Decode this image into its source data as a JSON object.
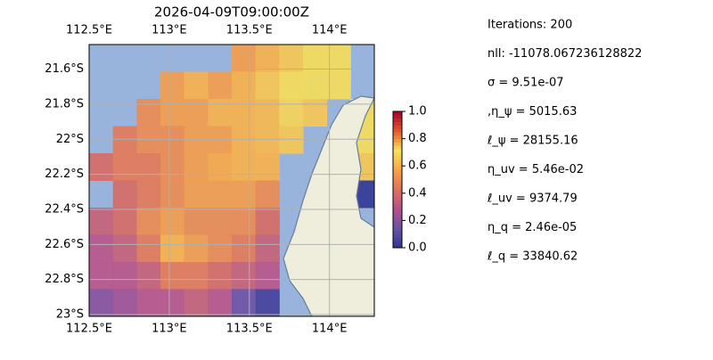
{
  "title": "2026-04-09T09:00:00Z",
  "map": {
    "lon_range": [
      112.5,
      114.28
    ],
    "lat_range": [
      -23.01,
      -21.46
    ],
    "lon_ticks": [
      {
        "value": 112.5,
        "label": "112.5°E"
      },
      {
        "value": 113,
        "label": "113°E"
      },
      {
        "value": 113.5,
        "label": "113.5°E"
      },
      {
        "value": 114,
        "label": "114°E"
      }
    ],
    "lat_ticks": [
      {
        "value": -21.6,
        "label": "21.6°S"
      },
      {
        "value": -21.8,
        "label": "21.8°S"
      },
      {
        "value": -22,
        "label": "22°S"
      },
      {
        "value": -22.2,
        "label": "22.2°S"
      },
      {
        "value": -22.4,
        "label": "22.4°S"
      },
      {
        "value": -22.6,
        "label": "22.6°S"
      },
      {
        "value": -22.8,
        "label": "22.8°S"
      },
      {
        "value": -23,
        "label": "23°S"
      }
    ],
    "field": [
      [
        null,
        null,
        null,
        null,
        null,
        null,
        0.55,
        0.6,
        0.65,
        0.7,
        0.7,
        null
      ],
      [
        null,
        null,
        null,
        0.55,
        0.6,
        0.55,
        0.6,
        0.65,
        0.7,
        0.72,
        0.7,
        null
      ],
      [
        null,
        null,
        0.5,
        0.55,
        0.55,
        0.6,
        0.6,
        0.62,
        0.68,
        0.65,
        null,
        0.7
      ],
      [
        null,
        0.45,
        0.5,
        0.5,
        0.55,
        0.55,
        0.6,
        0.62,
        0.65,
        null,
        null,
        0.7
      ],
      [
        0.4,
        0.45,
        0.45,
        0.5,
        0.55,
        0.58,
        0.6,
        0.6,
        null,
        null,
        null,
        0.65
      ],
      [
        null,
        0.4,
        0.45,
        0.5,
        0.55,
        0.55,
        0.55,
        0.5,
        null,
        null,
        null,
        0.0
      ],
      [
        0.35,
        0.4,
        0.5,
        0.55,
        0.5,
        0.5,
        0.5,
        0.4,
        null,
        null,
        null,
        null
      ],
      [
        0.3,
        0.35,
        0.45,
        0.6,
        0.55,
        0.5,
        0.45,
        0.35,
        null,
        null,
        null,
        null
      ],
      [
        0.3,
        0.3,
        0.35,
        0.45,
        0.45,
        0.4,
        0.35,
        0.3,
        null,
        null,
        null,
        null
      ],
      [
        0.2,
        0.25,
        0.3,
        0.3,
        0.35,
        0.3,
        0.15,
        0.05,
        null,
        null,
        null,
        null
      ]
    ],
    "colormap": [
      "#313695",
      "#6a51a3",
      "#b5508f",
      "#e0715a",
      "#f9a446",
      "#f7e35a",
      "#e8562e",
      "#a50026"
    ],
    "clim": [
      0,
      1
    ],
    "cticks": [
      {
        "value": 0,
        "label": "0.0"
      },
      {
        "value": 0.2,
        "label": "0.2"
      },
      {
        "value": 0.4,
        "label": "0.4"
      },
      {
        "value": 0.6,
        "label": "0.6"
      },
      {
        "value": 0.8,
        "label": "0.8"
      },
      {
        "value": 1,
        "label": "1.0"
      }
    ]
  },
  "info": [
    "Iterations: 200",
    "nll: -11078.067236128822",
    "σ = 9.51e-07",
    ",η_ψ = 5015.63",
    "ℓ_ψ = 28155.16",
    "η_uv = 5.46e-02",
    "ℓ_uv = 9374.79",
    "η_q = 2.46e-05",
    "ℓ_q = 33840.62"
  ]
}
